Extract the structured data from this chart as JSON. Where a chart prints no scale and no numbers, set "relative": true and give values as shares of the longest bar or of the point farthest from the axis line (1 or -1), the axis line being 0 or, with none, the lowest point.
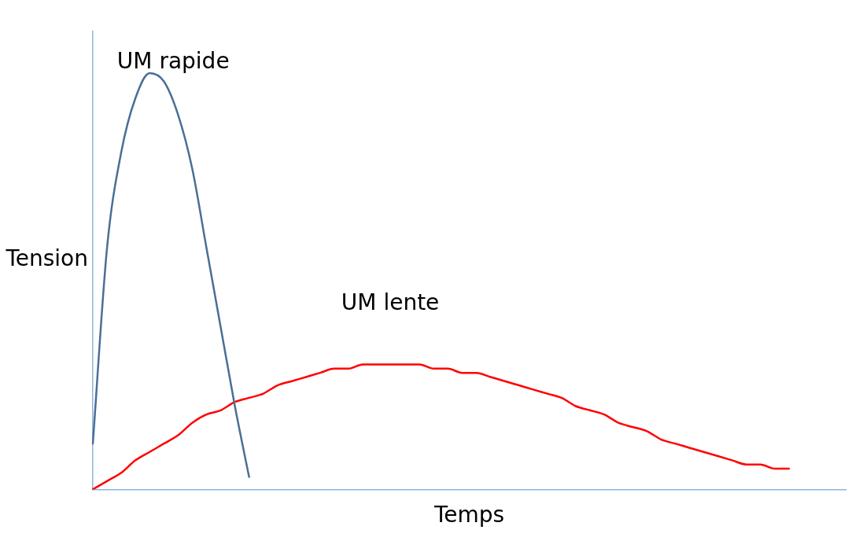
{
  "chart_data": {
    "type": "line",
    "xlabel": "Temps",
    "ylabel": "Tension",
    "relative": true,
    "legend": false,
    "grid": false,
    "marker": "none",
    "line_style": "solid",
    "categories": [
      null,
      null,
      null,
      null,
      null,
      null,
      null,
      null,
      null,
      null,
      null,
      null,
      null,
      null,
      null,
      null,
      null,
      null,
      null,
      null,
      null,
      null,
      null,
      null,
      null,
      null,
      null,
      null,
      null,
      null,
      null,
      null,
      null,
      null,
      null,
      null,
      null,
      null,
      null,
      null,
      null,
      null,
      null,
      null,
      null,
      null,
      null,
      null,
      null,
      null,
      null,
      null,
      null,
      null
    ],
    "series": [
      {
        "name": "UM rapide",
        "color": "#4a6f96",
        "values": [
          0.11,
          0.58,
          0.81,
          0.94,
          1.0,
          0.98,
          0.9,
          0.77,
          0.58,
          0.39,
          0.2,
          0.03,
          null,
          null,
          null,
          null,
          null,
          null,
          null,
          null,
          null,
          null,
          null,
          null,
          null,
          null,
          null,
          null,
          null,
          null,
          null,
          null,
          null,
          null,
          null,
          null,
          null,
          null,
          null,
          null,
          null,
          null,
          null,
          null,
          null,
          null,
          null,
          null,
          null,
          null,
          null,
          null,
          null,
          null
        ]
      },
      {
        "name": "UM lente",
        "color": "#ff0000",
        "values": [
          0,
          0.02,
          0.04,
          0.07,
          0.09,
          0.11,
          0.13,
          0.16,
          0.18,
          0.19,
          0.21,
          0.22,
          0.23,
          0.25,
          0.26,
          0.27,
          0.28,
          0.29,
          0.29,
          0.3,
          0.3,
          0.3,
          0.3,
          0.3,
          0.29,
          0.29,
          0.28,
          0.28,
          0.27,
          0.26,
          0.25,
          0.24,
          0.23,
          0.22,
          0.2,
          0.19,
          0.18,
          0.16,
          0.15,
          0.14,
          0.12,
          0.11,
          0.1,
          0.09,
          0.08,
          0.07,
          0.06,
          0.06,
          0.05,
          0.05,
          null,
          null,
          null,
          null
        ]
      }
    ]
  }
}
